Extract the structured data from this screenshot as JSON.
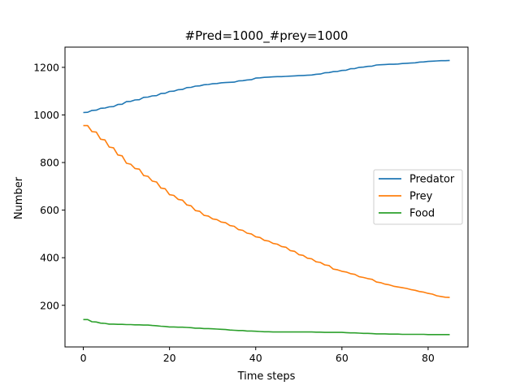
{
  "chart_data": {
    "type": "line",
    "title": "#Pred=1000_#prey=1000",
    "xlabel": "Time steps",
    "ylabel": "Number",
    "xlim": [
      -4.25,
      89.25
    ],
    "ylim": [
      25,
      1285
    ],
    "xticks": [
      0,
      20,
      40,
      60,
      80
    ],
    "yticks": [
      200,
      400,
      600,
      800,
      1000,
      1200
    ],
    "grid": false,
    "legend_position": "center-right",
    "colors": {
      "Predator": "#1f77b4",
      "Prey": "#ff7f0e",
      "Food": "#2ca02c"
    },
    "series": [
      {
        "name": "Predator",
        "x": [
          0,
          1,
          2,
          3,
          4,
          5,
          6,
          7,
          8,
          9,
          10,
          11,
          12,
          13,
          14,
          15,
          16,
          17,
          18,
          19,
          20,
          21,
          22,
          23,
          24,
          25,
          26,
          27,
          28,
          29,
          30,
          31,
          32,
          33,
          34,
          35,
          36,
          37,
          38,
          39,
          40,
          41,
          42,
          43,
          44,
          45,
          46,
          47,
          48,
          49,
          50,
          51,
          52,
          53,
          54,
          55,
          56,
          57,
          58,
          59,
          60,
          61,
          62,
          63,
          64,
          65,
          66,
          67,
          68,
          69,
          70,
          71,
          72,
          73,
          74,
          75,
          76,
          77,
          78,
          79,
          80,
          81,
          82,
          83,
          84,
          85
        ],
        "values": [
          1010,
          1011,
          1019,
          1020,
          1028,
          1029,
          1034,
          1035,
          1044,
          1045,
          1056,
          1057,
          1063,
          1064,
          1074,
          1075,
          1080,
          1081,
          1090,
          1091,
          1099,
          1100,
          1106,
          1107,
          1115,
          1116,
          1121,
          1122,
          1127,
          1128,
          1131,
          1132,
          1135,
          1136,
          1137,
          1138,
          1143,
          1144,
          1147,
          1148,
          1155,
          1156,
          1158,
          1159,
          1160,
          1161,
          1161,
          1162,
          1163,
          1164,
          1165,
          1166,
          1167,
          1168,
          1171,
          1172,
          1177,
          1178,
          1182,
          1183,
          1187,
          1188,
          1194,
          1195,
          1200,
          1201,
          1204,
          1205,
          1210,
          1211,
          1212,
          1213,
          1213,
          1214,
          1216,
          1217,
          1218,
          1219,
          1222,
          1223,
          1225,
          1226,
          1227,
          1228,
          1228,
          1229
        ]
      },
      {
        "name": "Prey",
        "x": [
          0,
          1,
          2,
          3,
          4,
          5,
          6,
          7,
          8,
          9,
          10,
          11,
          12,
          13,
          14,
          15,
          16,
          17,
          18,
          19,
          20,
          21,
          22,
          23,
          24,
          25,
          26,
          27,
          28,
          29,
          30,
          31,
          32,
          33,
          34,
          35,
          36,
          37,
          38,
          39,
          40,
          41,
          42,
          43,
          44,
          45,
          46,
          47,
          48,
          49,
          50,
          51,
          52,
          53,
          54,
          55,
          56,
          57,
          58,
          59,
          60,
          61,
          62,
          63,
          64,
          65,
          66,
          67,
          68,
          69,
          70,
          71,
          72,
          73,
          74,
          75,
          76,
          77,
          78,
          79,
          80,
          81,
          82,
          83,
          84,
          85
        ],
        "values": [
          955,
          955,
          930,
          928,
          898,
          895,
          865,
          862,
          832,
          828,
          797,
          793,
          775,
          772,
          745,
          742,
          722,
          718,
          693,
          690,
          665,
          662,
          645,
          642,
          622,
          618,
          598,
          595,
          578,
          575,
          563,
          560,
          550,
          547,
          535,
          532,
          518,
          515,
          503,
          500,
          488,
          485,
          473,
          470,
          460,
          457,
          447,
          444,
          430,
          427,
          413,
          410,
          398,
          395,
          383,
          380,
          370,
          367,
          352,
          349,
          343,
          340,
          333,
          330,
          320,
          317,
          312,
          309,
          298,
          295,
          289,
          286,
          280,
          277,
          274,
          271,
          266,
          263,
          258,
          255,
          250,
          247,
          240,
          237,
          234,
          233
        ]
      },
      {
        "name": "Food",
        "x": [
          0,
          1,
          2,
          3,
          4,
          5,
          6,
          7,
          8,
          9,
          10,
          11,
          12,
          13,
          14,
          15,
          16,
          17,
          18,
          19,
          20,
          21,
          22,
          23,
          24,
          25,
          26,
          27,
          28,
          29,
          30,
          31,
          32,
          33,
          34,
          35,
          36,
          37,
          38,
          39,
          40,
          41,
          42,
          43,
          44,
          45,
          46,
          47,
          48,
          49,
          50,
          51,
          52,
          53,
          54,
          55,
          56,
          57,
          58,
          59,
          60,
          61,
          62,
          63,
          64,
          65,
          66,
          67,
          68,
          69,
          70,
          71,
          72,
          73,
          74,
          75,
          76,
          77,
          78,
          79,
          80,
          81,
          82,
          83,
          84,
          85
        ],
        "values": [
          140,
          140,
          131,
          130,
          125,
          124,
          121,
          121,
          120,
          120,
          119,
          119,
          118,
          118,
          117,
          117,
          115,
          114,
          112,
          111,
          109,
          109,
          108,
          108,
          107,
          106,
          104,
          104,
          102,
          102,
          101,
          100,
          99,
          98,
          96,
          95,
          94,
          94,
          92,
          92,
          91,
          90,
          89,
          89,
          88,
          88,
          88,
          88,
          88,
          88,
          88,
          88,
          88,
          88,
          87,
          87,
          86,
          86,
          86,
          86,
          86,
          85,
          84,
          84,
          83,
          82,
          82,
          81,
          80,
          80,
          80,
          79,
          79,
          79,
          78,
          78,
          78,
          78,
          78,
          78,
          77,
          77,
          77,
          77,
          77,
          77
        ]
      }
    ]
  }
}
